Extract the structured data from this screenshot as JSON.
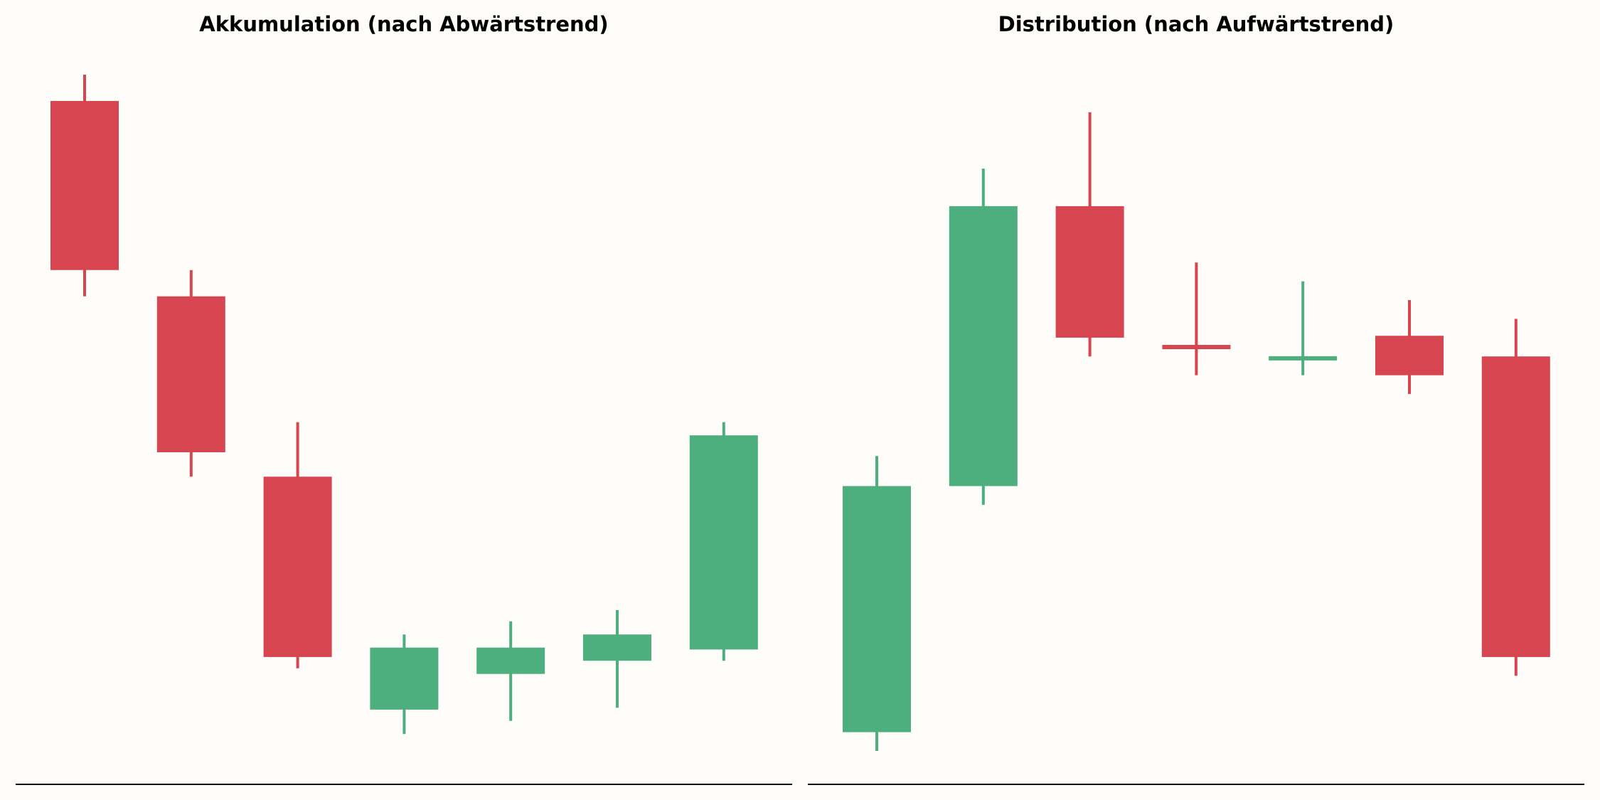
{
  "colors": {
    "background": "#fefdfa",
    "bullish": "#4daf7e",
    "bearish": "#d64550",
    "axis": "#000000"
  },
  "chart_data": [
    {
      "type": "candlestick",
      "title": "Akkumulation (nach Abwärtstrend)",
      "xlabel": "",
      "ylabel": "",
      "ylim": [
        0,
        36
      ],
      "grid": false,
      "candles": [
        {
          "open": 34.6,
          "high": 36.0,
          "low": 24.2,
          "close": 25.6
        },
        {
          "open": 24.2,
          "high": 25.6,
          "low": 14.6,
          "close": 15.9
        },
        {
          "open": 14.6,
          "high": 17.5,
          "low": 4.4,
          "close": 5.0
        },
        {
          "open": 2.2,
          "high": 6.2,
          "low": 0.9,
          "close": 5.5
        },
        {
          "open": 4.1,
          "high": 6.9,
          "low": 1.6,
          "close": 5.5
        },
        {
          "open": 4.8,
          "high": 7.5,
          "low": 2.3,
          "close": 6.2
        },
        {
          "open": 5.4,
          "high": 17.5,
          "low": 4.8,
          "close": 16.8
        }
      ]
    },
    {
      "type": "candlestick",
      "title": "Distribution (nach Aufwärtstrend)",
      "xlabel": "",
      "ylabel": "",
      "ylim": [
        0,
        36
      ],
      "grid": false,
      "candles": [
        {
          "open": 1.0,
          "high": 15.7,
          "low": 0.0,
          "close": 14.1
        },
        {
          "open": 14.1,
          "high": 31.0,
          "low": 13.1,
          "close": 29.0
        },
        {
          "open": 29.0,
          "high": 34.0,
          "low": 21.0,
          "close": 22.0
        },
        {
          "open": 21.6,
          "high": 26.0,
          "low": 20.0,
          "close": 21.4
        },
        {
          "open": 20.8,
          "high": 25.0,
          "low": 20.0,
          "close": 21.0
        },
        {
          "open": 22.1,
          "high": 24.0,
          "low": 19.0,
          "close": 20.0
        },
        {
          "open": 21.0,
          "high": 23.0,
          "low": 4.0,
          "close": 5.0
        }
      ]
    }
  ]
}
